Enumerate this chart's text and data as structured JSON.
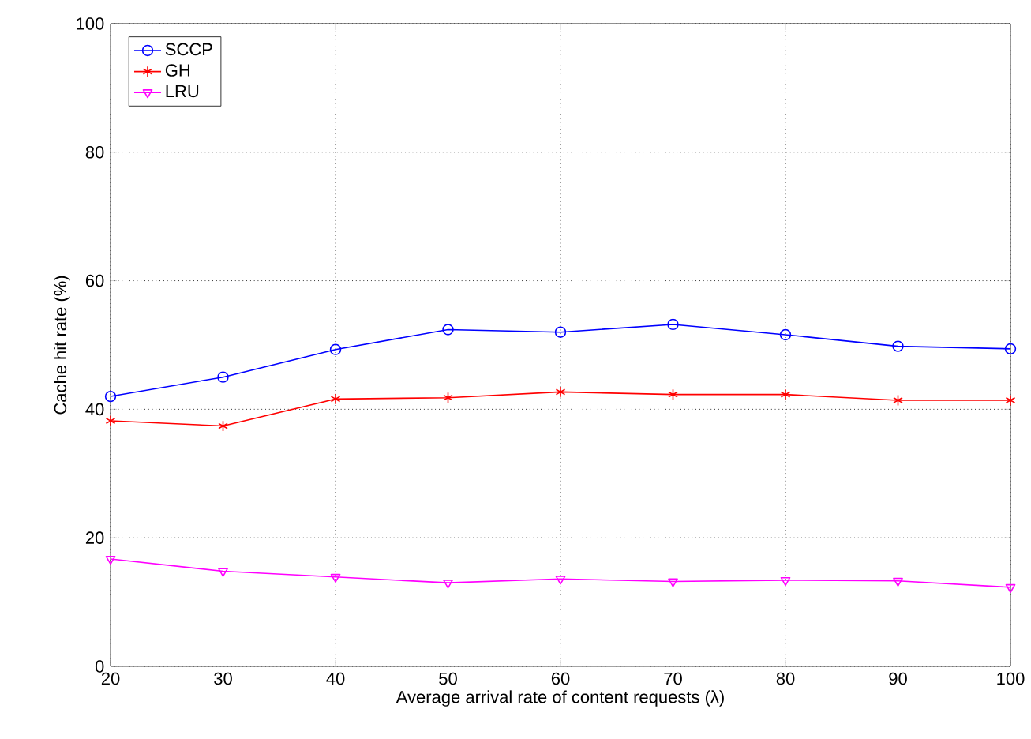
{
  "chart_data": {
    "type": "line",
    "xlabel": "Average arrival rate of content requests (λ)",
    "ylabel": "Cache hit rate (%)",
    "x": [
      20,
      30,
      40,
      50,
      60,
      70,
      80,
      90,
      100
    ],
    "series": [
      {
        "name": "SCCP",
        "color": "#0000ff",
        "marker": "circle",
        "values": [
          42,
          45,
          49.3,
          52.4,
          52,
          53.2,
          51.6,
          49.8,
          49.4
        ]
      },
      {
        "name": "GH",
        "color": "#ff0000",
        "marker": "cross",
        "values": [
          38.2,
          37.4,
          41.6,
          41.8,
          42.7,
          42.3,
          42.3,
          41.4,
          41.4
        ]
      },
      {
        "name": "LRU",
        "color": "#ff00ff",
        "marker": "triangle",
        "values": [
          16.7,
          14.8,
          13.9,
          13,
          13.6,
          13.2,
          13.4,
          13.3,
          12.3
        ]
      }
    ],
    "xlim": [
      20,
      100
    ],
    "ylim": [
      0,
      100
    ],
    "xticks": [
      20,
      30,
      40,
      50,
      60,
      70,
      80,
      90,
      100
    ],
    "yticks": [
      0,
      20,
      40,
      60,
      80,
      100
    ],
    "grid": true,
    "legend": "top left",
    "line_style": "solid"
  }
}
